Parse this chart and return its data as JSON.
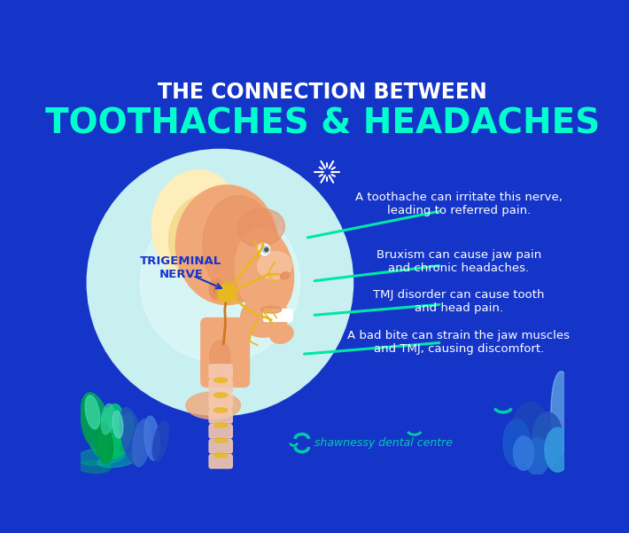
{
  "bg_color": "#1535c9",
  "title_line1": "THE CONNECTION BETWEEN",
  "title_line2": "TOOTHACHES & HEADACHES",
  "title_color1": "#ffffff",
  "title_color2": "#00ffcc",
  "annotation_color": "#ffffff",
  "line_color": "#00e6aa",
  "label_nerve": "TRIGEMINAL\nNERVE",
  "label_nerve_color": "#1535c9",
  "annotations": [
    "A toothache can irritate this nerve,\nleading to referred pain.",
    "Bruxism can cause jaw pain\nand chronic headaches.",
    "TMJ disorder can cause tooth\nand head pain.",
    "A bad bite can strain the jaw muscles\nand TMJ, causing discomfort."
  ],
  "circle_color": "#c8f0f0",
  "circle_color2": "#e8fafa",
  "skin_base": "#f0a878",
  "skin_mid": "#e89060",
  "skin_dark": "#d07848",
  "skin_light": "#f8c8a8",
  "hair_color": "#f5d888",
  "hair_light": "#fdeebb",
  "nerve_yellow": "#e8b820",
  "nerve_orange": "#cc7722",
  "spine_light": "#f5c8b0",
  "spine_yellow": "#e8b820",
  "brand_text": "shawnessy dental centre",
  "brand_color": "#00ccaa",
  "spark_color": "#ffffff",
  "deco_teal": "#00ccaa",
  "deco_green": "#00aa77",
  "deco_blue1": "#2244cc",
  "deco_blue2": "#3366dd",
  "deco_cyan": "#88ddee"
}
